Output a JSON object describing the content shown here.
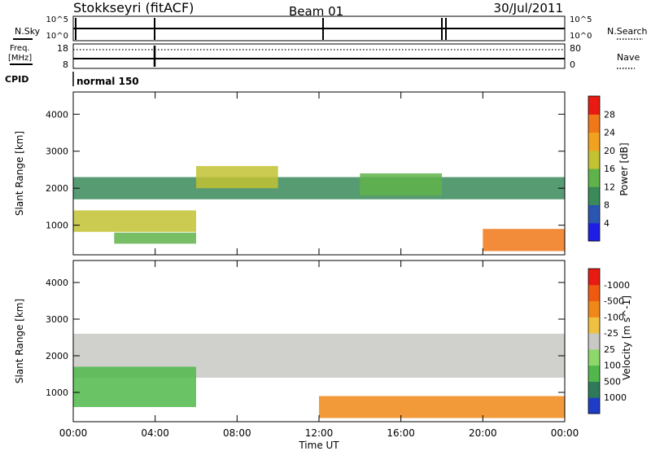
{
  "header": {
    "station": "Stokkseyri (fitACF)",
    "beam": "Beam 01",
    "date": "30/Jul/2011"
  },
  "small_panels": {
    "nsky_label": "N.Sky",
    "nsky_ticks": [
      "10^5",
      "10^0"
    ],
    "nsearch_label": "N.Search",
    "nsearch_ticks": [
      "10^5",
      "10^0"
    ],
    "freq_label_1": "Freq.",
    "freq_label_2": "[MHz]",
    "freq_ticks": [
      "18",
      "8"
    ],
    "nave_label": "Nave",
    "nave_ticks": [
      "80",
      "0"
    ],
    "cpid_label": "CPID",
    "cpid_value": "normal 150"
  },
  "chart_data": [
    {
      "type": "heatmap",
      "name": "power",
      "ylabel": "Slant Range [km]",
      "xlabel": "",
      "xlim": [
        0,
        24
      ],
      "ylim": [
        200,
        4600
      ],
      "x_ticks": [
        "00:00",
        "04:00",
        "08:00",
        "12:00",
        "16:00",
        "20:00",
        "00:00"
      ],
      "y_ticks": [
        "1000",
        "2000",
        "3000",
        "4000"
      ],
      "colorbar": {
        "label": "Power [dB]",
        "ticks": [
          "4",
          "8",
          "12",
          "16",
          "20",
          "24",
          "28"
        ],
        "colors": [
          "#1e1ee6",
          "#2a55b0",
          "#3a8a5a",
          "#5fb34a",
          "#c2c232",
          "#f2a21e",
          "#f07818",
          "#e81a12"
        ]
      },
      "bands": [
        {
          "t0": 0.0,
          "t1": 6.0,
          "r0": 820,
          "r1": 1400,
          "level": 4
        },
        {
          "t0": 2.0,
          "t1": 6.0,
          "r0": 500,
          "r1": 800,
          "level": 3
        },
        {
          "t0": 0.0,
          "t1": 24.0,
          "r0": 1700,
          "r1": 2300,
          "level": 2
        },
        {
          "t0": 6.0,
          "t1": 10.0,
          "r0": 2000,
          "r1": 2600,
          "level": 4
        },
        {
          "t0": 14.0,
          "t1": 18.0,
          "r0": 1800,
          "r1": 2400,
          "level": 3
        },
        {
          "t0": 20.0,
          "t1": 24.0,
          "r0": 300,
          "r1": 900,
          "level": 6
        }
      ]
    },
    {
      "type": "heatmap",
      "name": "velocity",
      "ylabel": "Slant Range [km]",
      "xlabel": "Time UT",
      "xlim": [
        0,
        24
      ],
      "ylim": [
        200,
        4600
      ],
      "x_ticks": [
        "00:00",
        "04:00",
        "08:00",
        "12:00",
        "16:00",
        "20:00",
        "00:00"
      ],
      "y_ticks": [
        "1000",
        "2000",
        "3000",
        "4000"
      ],
      "colorbar": {
        "label": "Velocity [m s^-1]",
        "ticks": [
          "1000",
          "500",
          "100",
          "25",
          "-25",
          "-100",
          "-500",
          "-1000"
        ],
        "colors": [
          "#1e3cc8",
          "#2e7a5a",
          "#50b84a",
          "#8ed86a",
          "#c8c8c4",
          "#f0c040",
          "#f08818",
          "#f05a10",
          "#e81a12"
        ]
      },
      "bands": [
        {
          "t0": 0.0,
          "t1": 24.0,
          "r0": 1400,
          "r1": 2600,
          "level": 4
        },
        {
          "t0": 0.0,
          "t1": 6.0,
          "r0": 600,
          "r1": 1700,
          "level": 2
        },
        {
          "t0": 12.0,
          "t1": 24.0,
          "r0": 300,
          "r1": 900,
          "level": 6
        }
      ]
    }
  ]
}
